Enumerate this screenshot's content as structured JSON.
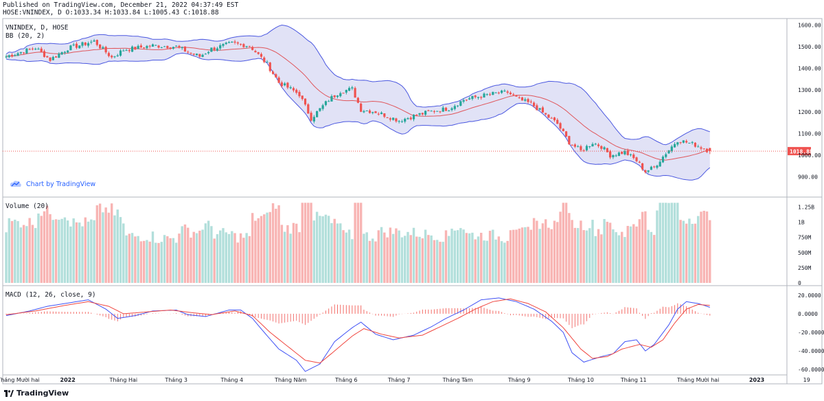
{
  "header": {
    "published": "Published on TradingView.com, December 21, 2022 04:37:49 EST",
    "ohlc": "HOSE:VNINDEX, D O:1033.34 H:1033.84 L:1005.43 C:1018.88"
  },
  "footer": {
    "brand": "TradingView"
  },
  "credit": {
    "label": "Chart by TradingView"
  },
  "colors": {
    "up": "#26a69a",
    "down": "#ef5350",
    "up_vol": "#b2dfdb",
    "down_vol": "#f8b4b3",
    "band": "#4a57e0",
    "band_fill": "#c9cbef",
    "basis": "#e0565b",
    "macd": "#3f51f5",
    "signal": "#f0463f",
    "last": "#ef5350"
  },
  "chart_data": [
    {
      "type": "candlestick",
      "title": "VNINDEX, D, HOSE",
      "indicator": "BB (20, 2)",
      "ylim": [
        820,
        1620
      ],
      "ticks": [
        900,
        1000,
        1100,
        1200,
        1300,
        1400,
        1500,
        1600
      ],
      "tick_labels": [
        "900.00",
        "1000.00",
        "1100.00",
        "1200.00",
        "1300.00",
        "1400.00",
        "1500.00",
        "1600.00"
      ],
      "last_value": 1018.88,
      "last_label": "1018.88",
      "x_labels": [
        "Tháng Mười hai",
        "2022",
        "Tháng Hai",
        "Tháng 3",
        "Tháng 4",
        "Tháng Năm",
        "Tháng 6",
        "Tháng 7",
        "Tháng Tám",
        "Tháng 9",
        "Tháng 10",
        "Tháng 11",
        "Tháng Mười hai",
        "2023",
        "19"
      ],
      "x_label_index": [
        0,
        21,
        40,
        58,
        77,
        97,
        116,
        134,
        154,
        175,
        196,
        214,
        236,
        256,
        273
      ],
      "close_anchors": [
        [
          0,
          1455
        ],
        [
          10,
          1495
        ],
        [
          15,
          1440
        ],
        [
          21,
          1492
        ],
        [
          30,
          1525
        ],
        [
          36,
          1450
        ],
        [
          40,
          1485
        ],
        [
          50,
          1505
        ],
        [
          58,
          1500
        ],
        [
          62,
          1475
        ],
        [
          66,
          1455
        ],
        [
          70,
          1490
        ],
        [
          77,
          1515
        ],
        [
          83,
          1505
        ],
        [
          89,
          1420
        ],
        [
          93,
          1335
        ],
        [
          97,
          1305
        ],
        [
          100,
          1280
        ],
        [
          104,
          1170
        ],
        [
          110,
          1255
        ],
        [
          114,
          1295
        ],
        [
          118,
          1305
        ],
        [
          121,
          1210
        ],
        [
          126,
          1200
        ],
        [
          131,
          1175
        ],
        [
          134,
          1160
        ],
        [
          140,
          1185
        ],
        [
          146,
          1205
        ],
        [
          151,
          1215
        ],
        [
          156,
          1255
        ],
        [
          161,
          1270
        ],
        [
          167,
          1285
        ],
        [
          171,
          1290
        ],
        [
          175,
          1255
        ],
        [
          179,
          1238
        ],
        [
          184,
          1185
        ],
        [
          188,
          1145
        ],
        [
          192,
          1060
        ],
        [
          196,
          1020
        ],
        [
          200,
          1058
        ],
        [
          203,
          1040
        ],
        [
          206,
          1000
        ],
        [
          211,
          1015
        ],
        [
          215,
          975
        ],
        [
          218,
          925
        ],
        [
          221,
          945
        ],
        [
          225,
          1010
        ],
        [
          229,
          1070
        ],
        [
          232,
          1060
        ],
        [
          235,
          1048
        ],
        [
          240,
          1018.88
        ]
      ],
      "volume": {
        "title": "Volume (20)",
        "ylim": [
          0,
          1380000000
        ],
        "ticks": [
          0,
          250000000,
          500000000,
          750000000,
          1000000000,
          1250000000
        ],
        "tick_labels": [
          "0",
          "250M",
          "500M",
          "750M",
          "1B",
          "1.25B"
        ]
      },
      "macd": {
        "title": "MACD (12, 26, close, 9)",
        "ylim": [
          -65,
          28
        ],
        "ticks": [
          -60,
          -40,
          -20,
          0,
          20
        ],
        "tick_labels": [
          "-60.0000",
          "-40.0000",
          "-20.0000",
          "0.0000",
          "20.0000"
        ],
        "macd_anchors": [
          [
            0,
            -2
          ],
          [
            8,
            3
          ],
          [
            14,
            8
          ],
          [
            20,
            11
          ],
          [
            28,
            15
          ],
          [
            34,
            5
          ],
          [
            38,
            -5
          ],
          [
            44,
            -2
          ],
          [
            50,
            3
          ],
          [
            58,
            4
          ],
          [
            62,
            -1
          ],
          [
            68,
            -3
          ],
          [
            76,
            4
          ],
          [
            80,
            4
          ],
          [
            84,
            -5
          ],
          [
            88,
            -20
          ],
          [
            93,
            -38
          ],
          [
            99,
            -50
          ],
          [
            102,
            -62
          ],
          [
            107,
            -54
          ],
          [
            112,
            -30
          ],
          [
            118,
            -15
          ],
          [
            121,
            -9
          ],
          [
            126,
            -22
          ],
          [
            132,
            -28
          ],
          [
            139,
            -23
          ],
          [
            145,
            -14
          ],
          [
            150,
            -5
          ],
          [
            156,
            4
          ],
          [
            162,
            15
          ],
          [
            168,
            17
          ],
          [
            174,
            13
          ],
          [
            180,
            5
          ],
          [
            186,
            -8
          ],
          [
            190,
            -20
          ],
          [
            193,
            -42
          ],
          [
            197,
            -52
          ],
          [
            203,
            -46
          ],
          [
            207,
            -43
          ],
          [
            211,
            -30
          ],
          [
            215,
            -28
          ],
          [
            218,
            -40
          ],
          [
            221,
            -33
          ],
          [
            226,
            -12
          ],
          [
            229,
            5
          ],
          [
            232,
            13
          ],
          [
            236,
            11
          ],
          [
            240,
            7
          ]
        ],
        "signal_anchors": [
          [
            0,
            -1
          ],
          [
            10,
            3
          ],
          [
            20,
            9
          ],
          [
            28,
            13
          ],
          [
            35,
            8
          ],
          [
            40,
            0
          ],
          [
            48,
            2
          ],
          [
            56,
            4
          ],
          [
            64,
            1
          ],
          [
            70,
            -1
          ],
          [
            78,
            3
          ],
          [
            84,
            -2
          ],
          [
            90,
            -20
          ],
          [
            96,
            -35
          ],
          [
            102,
            -50
          ],
          [
            107,
            -53
          ],
          [
            112,
            -40
          ],
          [
            118,
            -24
          ],
          [
            122,
            -16
          ],
          [
            128,
            -22
          ],
          [
            134,
            -26
          ],
          [
            142,
            -23
          ],
          [
            148,
            -14
          ],
          [
            154,
            -5
          ],
          [
            160,
            5
          ],
          [
            166,
            13
          ],
          [
            172,
            16
          ],
          [
            178,
            11
          ],
          [
            184,
            2
          ],
          [
            190,
            -15
          ],
          [
            196,
            -38
          ],
          [
            200,
            -48
          ],
          [
            205,
            -46
          ],
          [
            210,
            -38
          ],
          [
            216,
            -33
          ],
          [
            220,
            -36
          ],
          [
            224,
            -28
          ],
          [
            228,
            -10
          ],
          [
            232,
            5
          ],
          [
            236,
            10
          ],
          [
            240,
            9
          ]
        ]
      }
    }
  ]
}
